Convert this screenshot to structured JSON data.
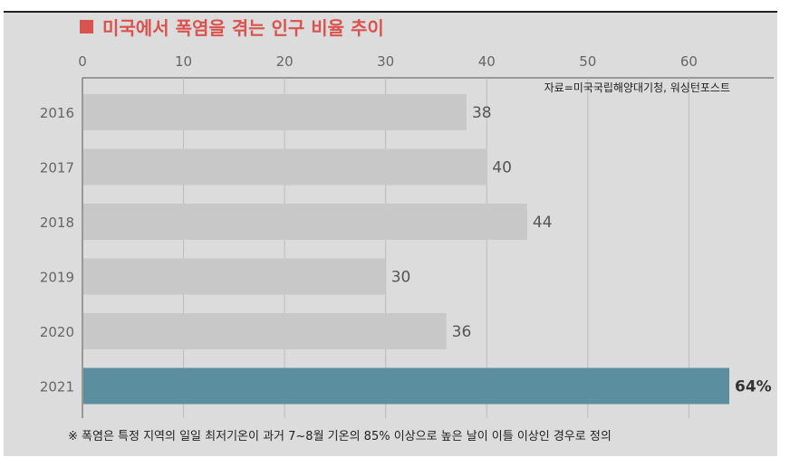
{
  "chart_data": {
    "type": "bar",
    "orientation": "horizontal",
    "title": "미국에서 폭염을 겪는 인구 비율 추이",
    "source": "자료=미국국립해양대기청, 워싱턴포스트",
    "footnote": "※ 폭염은 특정 지역의 일일 최저기온이 과거 7~8월 기온의 85% 이상으로 높은 날이 이틀 이상인 경우로 정의",
    "categories": [
      "2016",
      "2017",
      "2018",
      "2019",
      "2020",
      "2021"
    ],
    "values": [
      38,
      40,
      44,
      30,
      36,
      64
    ],
    "value_labels": [
      "38",
      "40",
      "44",
      "30",
      "36",
      "64%"
    ],
    "x_ticks": [
      0,
      10,
      20,
      30,
      40,
      50,
      60
    ],
    "xlim": [
      0,
      64
    ],
    "grid": true,
    "colors": {
      "bar": "#c8c8c8",
      "highlight": "#5b8fa0",
      "title": "#d9534f",
      "background": "#dcdcdc"
    },
    "highlight_index": 5
  }
}
